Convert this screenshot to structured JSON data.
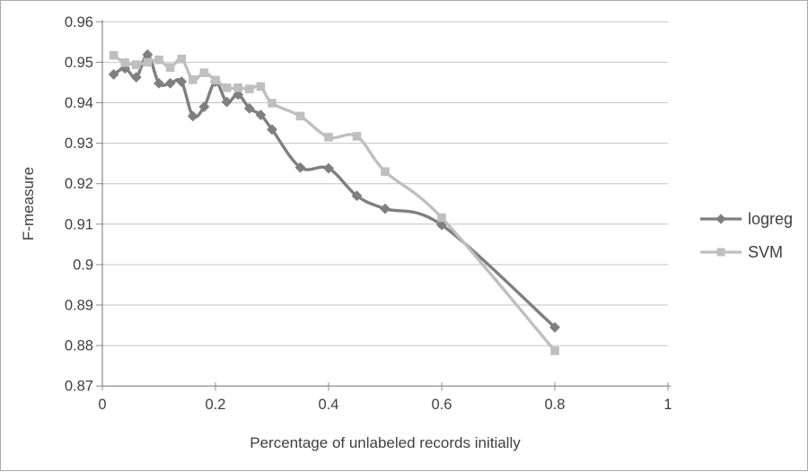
{
  "colors": {
    "background": "#ffffff",
    "border": "#ababab",
    "axis": "#898989",
    "grid": "#c3c3c3",
    "text": "#3f3f3f",
    "logreg": "#7f7f7f",
    "svm": "#bfbfbf"
  },
  "chart_data": {
    "type": "line",
    "title": "",
    "xlabel": "Percentage of unlabeled records initially",
    "ylabel": "F-measure",
    "xlim": [
      0,
      1
    ],
    "ylim": [
      0.87,
      0.96
    ],
    "grid": true,
    "legend_position": "right",
    "line_style": "smooth",
    "x": [
      0.02,
      0.04,
      0.06,
      0.08,
      0.1,
      0.12,
      0.14,
      0.16,
      0.18,
      0.2,
      0.22,
      0.24,
      0.26,
      0.28,
      0.3,
      0.35,
      0.4,
      0.45,
      0.5,
      0.6,
      0.8
    ],
    "series": [
      {
        "name": "logreg",
        "marker": "diamond",
        "color": "#7f7f7f",
        "values": [
          0.947,
          0.9485,
          0.9463,
          0.9519,
          0.9448,
          0.9448,
          0.9452,
          0.9367,
          0.939,
          0.9452,
          0.9402,
          0.942,
          0.9386,
          0.937,
          0.9334,
          0.924,
          0.9238,
          0.917,
          0.9138,
          0.9098,
          0.8845
        ]
      },
      {
        "name": "SVM",
        "marker": "square",
        "color": "#bfbfbf",
        "values": [
          0.9517,
          0.9499,
          0.9494,
          0.95,
          0.9506,
          0.9487,
          0.9508,
          0.9457,
          0.9474,
          0.9456,
          0.9437,
          0.9437,
          0.9434,
          0.944,
          0.9399,
          0.9367,
          0.9315,
          0.9317,
          0.923,
          0.9116,
          0.8787
        ]
      }
    ],
    "yticks": [
      {
        "value": 0.96,
        "label": "0.96"
      },
      {
        "value": 0.95,
        "label": "0.95"
      },
      {
        "value": 0.94,
        "label": "0.94"
      },
      {
        "value": 0.93,
        "label": "0.93"
      },
      {
        "value": 0.92,
        "label": "0.92"
      },
      {
        "value": 0.91,
        "label": "0.91"
      },
      {
        "value": 0.9,
        "label": "0.9"
      },
      {
        "value": 0.89,
        "label": "0.89"
      },
      {
        "value": 0.88,
        "label": "0.88"
      },
      {
        "value": 0.87,
        "label": "0.87"
      }
    ],
    "xticks": [
      {
        "value": 0,
        "label": "0"
      },
      {
        "value": 0.2,
        "label": "0.2"
      },
      {
        "value": 0.4,
        "label": "0.4"
      },
      {
        "value": 0.6,
        "label": "0.6"
      },
      {
        "value": 0.8,
        "label": "0.8"
      },
      {
        "value": 1,
        "label": "1"
      }
    ]
  }
}
